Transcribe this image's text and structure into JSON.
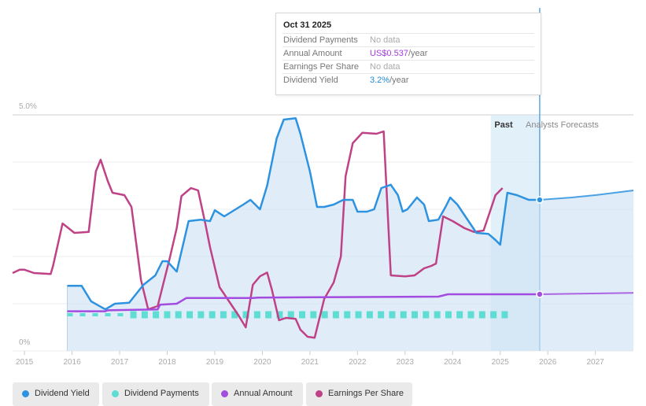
{
  "tooltip": {
    "date": "Oct 31 2025",
    "rows": [
      {
        "label": "Dividend Payments",
        "value": "No data",
        "unit": "",
        "color": "#aaaaaa"
      },
      {
        "label": "Annual Amount",
        "value": "US$0.537",
        "unit": "/year",
        "color": "#a43de0"
      },
      {
        "label": "Earnings Per Share",
        "value": "No data",
        "unit": "",
        "color": "#aaaaaa"
      },
      {
        "label": "Dividend Yield",
        "value": "3.2%",
        "unit": "/year",
        "color": "#1e8ad6"
      }
    ]
  },
  "chart_data": {
    "type": "line",
    "title": "",
    "xlabel": "",
    "ylabel": "",
    "y_tick_labels": [
      "0%",
      "5.0%"
    ],
    "ylim": [
      0,
      5.0
    ],
    "xlim": [
      2014.75,
      2027.8
    ],
    "x_tick_labels": [
      "2015",
      "2016",
      "2017",
      "2018",
      "2019",
      "2020",
      "2021",
      "2022",
      "2023",
      "2024",
      "2025",
      "2026",
      "2027"
    ],
    "x_ticks": [
      2015,
      2016,
      2017,
      2018,
      2019,
      2020,
      2021,
      2022,
      2023,
      2024,
      2025,
      2026,
      2027
    ],
    "regions": {
      "past_label": "Past",
      "forecast_label": "Analysts Forecasts",
      "past_start": 2024.8,
      "now": 2025.83
    },
    "series": [
      {
        "name": "Dividend Yield",
        "color": "#2d93e0",
        "points": [
          [
            2015.9,
            1.38
          ],
          [
            2016.2,
            1.38
          ],
          [
            2016.4,
            1.05
          ],
          [
            2016.7,
            0.88
          ],
          [
            2016.9,
            1.0
          ],
          [
            2017.2,
            1.02
          ],
          [
            2017.5,
            1.4
          ],
          [
            2017.75,
            1.6
          ],
          [
            2017.9,
            1.9
          ],
          [
            2018.0,
            1.9
          ],
          [
            2018.2,
            1.68
          ],
          [
            2018.45,
            2.75
          ],
          [
            2018.7,
            2.78
          ],
          [
            2018.9,
            2.75
          ],
          [
            2019.0,
            2.98
          ],
          [
            2019.2,
            2.85
          ],
          [
            2019.6,
            3.1
          ],
          [
            2019.75,
            3.2
          ],
          [
            2019.95,
            3.0
          ],
          [
            2020.1,
            3.5
          ],
          [
            2020.3,
            4.5
          ],
          [
            2020.45,
            4.9
          ],
          [
            2020.7,
            4.93
          ],
          [
            2020.8,
            4.6
          ],
          [
            2021.0,
            3.8
          ],
          [
            2021.15,
            3.05
          ],
          [
            2021.3,
            3.05
          ],
          [
            2021.5,
            3.1
          ],
          [
            2021.7,
            3.2
          ],
          [
            2021.9,
            3.2
          ],
          [
            2022.0,
            2.95
          ],
          [
            2022.2,
            2.95
          ],
          [
            2022.35,
            3.0
          ],
          [
            2022.5,
            3.45
          ],
          [
            2022.7,
            3.52
          ],
          [
            2022.85,
            3.3
          ],
          [
            2022.95,
            2.95
          ],
          [
            2023.05,
            3.0
          ],
          [
            2023.25,
            3.25
          ],
          [
            2023.4,
            3.1
          ],
          [
            2023.5,
            2.75
          ],
          [
            2023.7,
            2.78
          ],
          [
            2023.85,
            3.05
          ],
          [
            2023.95,
            3.25
          ],
          [
            2024.1,
            3.1
          ],
          [
            2024.3,
            2.8
          ],
          [
            2024.5,
            2.5
          ],
          [
            2024.75,
            2.48
          ],
          [
            2024.9,
            2.35
          ],
          [
            2025.0,
            2.25
          ],
          [
            2025.15,
            3.35
          ],
          [
            2025.35,
            3.3
          ],
          [
            2025.6,
            3.2
          ],
          [
            2025.83,
            3.2
          ]
        ],
        "forecast_points": [
          [
            2025.83,
            3.2
          ],
          [
            2026.5,
            3.25
          ],
          [
            2027.0,
            3.3
          ],
          [
            2027.8,
            3.4
          ]
        ]
      },
      {
        "name": "Annual Amount",
        "color": "#a34ce0",
        "points": [
          [
            2015.9,
            0.84
          ],
          [
            2016.7,
            0.84
          ],
          [
            2016.75,
            0.86
          ],
          [
            2017.3,
            0.87
          ],
          [
            2017.8,
            0.88
          ],
          [
            2017.85,
            0.98
          ],
          [
            2018.2,
            1.0
          ],
          [
            2018.4,
            1.12
          ],
          [
            2019.8,
            1.12
          ],
          [
            2019.9,
            1.13
          ],
          [
            2023.7,
            1.15
          ],
          [
            2023.9,
            1.2
          ],
          [
            2025.83,
            1.2
          ]
        ],
        "forecast_points": [
          [
            2025.83,
            1.2
          ],
          [
            2026.5,
            1.21
          ],
          [
            2027.8,
            1.23
          ]
        ]
      },
      {
        "name": "Earnings Per Share",
        "color": "#bf4186",
        "points": [
          [
            2014.75,
            1.65
          ],
          [
            2014.9,
            1.72
          ],
          [
            2015.0,
            1.72
          ],
          [
            2015.2,
            1.65
          ],
          [
            2015.55,
            1.63
          ],
          [
            2015.6,
            1.8
          ],
          [
            2015.8,
            2.7
          ],
          [
            2016.05,
            2.5
          ],
          [
            2016.35,
            2.52
          ],
          [
            2016.5,
            3.8
          ],
          [
            2016.6,
            4.05
          ],
          [
            2016.75,
            3.6
          ],
          [
            2016.85,
            3.35
          ],
          [
            2017.1,
            3.3
          ],
          [
            2017.25,
            3.05
          ],
          [
            2017.45,
            1.5
          ],
          [
            2017.6,
            0.88
          ],
          [
            2017.8,
            0.95
          ],
          [
            2018.05,
            1.95
          ],
          [
            2018.2,
            2.6
          ],
          [
            2018.3,
            3.28
          ],
          [
            2018.5,
            3.45
          ],
          [
            2018.65,
            3.4
          ],
          [
            2018.8,
            2.7
          ],
          [
            2018.9,
            2.2
          ],
          [
            2019.1,
            1.35
          ],
          [
            2019.3,
            1.05
          ],
          [
            2019.5,
            0.75
          ],
          [
            2019.65,
            0.5
          ],
          [
            2019.8,
            1.4
          ],
          [
            2019.95,
            1.58
          ],
          [
            2020.1,
            1.66
          ],
          [
            2020.2,
            1.3
          ],
          [
            2020.35,
            0.65
          ],
          [
            2020.5,
            0.7
          ],
          [
            2020.7,
            0.68
          ],
          [
            2020.8,
            0.45
          ],
          [
            2020.95,
            0.3
          ],
          [
            2021.1,
            0.28
          ],
          [
            2021.3,
            1.1
          ],
          [
            2021.5,
            1.45
          ],
          [
            2021.65,
            2.0
          ],
          [
            2021.75,
            3.7
          ],
          [
            2021.9,
            4.4
          ],
          [
            2022.1,
            4.62
          ],
          [
            2022.4,
            4.6
          ],
          [
            2022.55,
            4.65
          ],
          [
            2022.7,
            1.6
          ],
          [
            2023.0,
            1.58
          ],
          [
            2023.2,
            1.6
          ],
          [
            2023.4,
            1.75
          ],
          [
            2023.55,
            1.8
          ],
          [
            2023.65,
            1.85
          ],
          [
            2023.8,
            2.85
          ],
          [
            2024.0,
            2.75
          ],
          [
            2024.25,
            2.6
          ],
          [
            2024.45,
            2.52
          ],
          [
            2024.65,
            2.55
          ],
          [
            2024.9,
            3.3
          ],
          [
            2025.05,
            3.45
          ]
        ]
      },
      {
        "name": "Dividend Payments",
        "color": "#5fddd4",
        "points": [
          [
            2015.9,
            0.75
          ],
          [
            2016.3,
            0.75
          ],
          [
            2016.75,
            0.75
          ],
          [
            2017.0,
            0.75
          ],
          [
            2017.5,
            0.75
          ],
          [
            2018.0,
            0.78
          ],
          [
            2018.5,
            0.8
          ],
          [
            2019.0,
            0.8
          ],
          [
            2020.0,
            0.8
          ],
          [
            2021.0,
            0.8
          ],
          [
            2022.0,
            0.8
          ],
          [
            2023.0,
            0.8
          ],
          [
            2024.0,
            0.8
          ],
          [
            2025.25,
            0.8
          ]
        ]
      }
    ]
  },
  "legend": [
    {
      "label": "Dividend Yield",
      "color": "#2d93e0"
    },
    {
      "label": "Dividend Payments",
      "color": "#5fddd4"
    },
    {
      "label": "Annual Amount",
      "color": "#a34ce0"
    },
    {
      "label": "Earnings Per Share",
      "color": "#bf4186"
    }
  ]
}
